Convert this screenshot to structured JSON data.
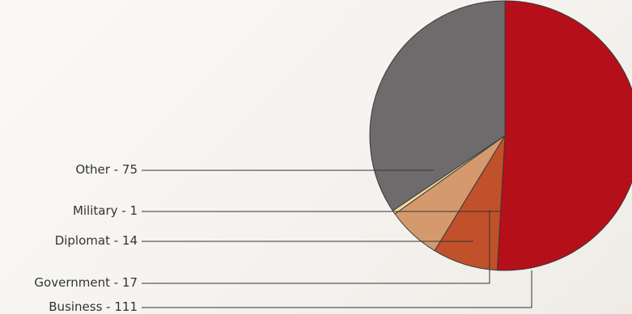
{
  "chart_data": {
    "type": "pie",
    "title": "",
    "slices": [
      {
        "label": "Business",
        "value": 111,
        "color": "#b50f1a"
      },
      {
        "label": "Government",
        "value": 17,
        "color": "#c0512a"
      },
      {
        "label": "Diplomat",
        "value": 14,
        "color": "#d49a6e"
      },
      {
        "label": "Military",
        "value": 1,
        "color": "#f0d79a"
      },
      {
        "label": "Other",
        "value": 75,
        "color": "#6d6b6c"
      }
    ],
    "legend_text": [
      "Other - 75",
      "Military - 1",
      "Diplomat - 14",
      "Government - 17",
      "Business - 111"
    ]
  }
}
